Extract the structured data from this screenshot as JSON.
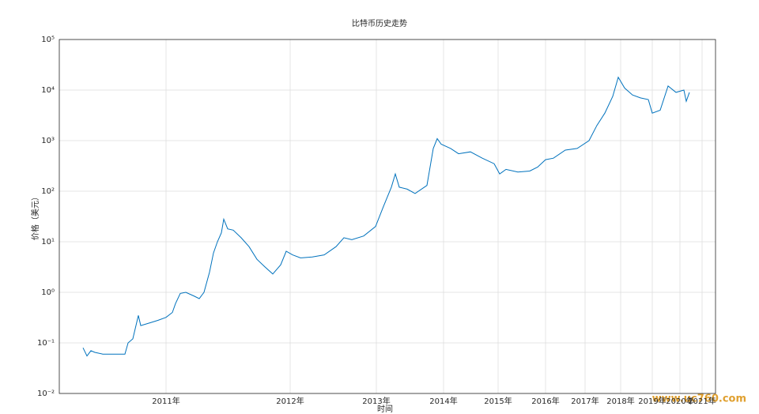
{
  "chart_data": {
    "type": "line",
    "title": "比特币历史走势",
    "xlabel": "时间",
    "ylabel": "价格（美元）",
    "watermark": "www.uc760.com",
    "log_y": true,
    "grid": true,
    "xlim": [
      0,
      830
    ],
    "ylim": [
      0.01,
      100000
    ],
    "xticks": [
      {
        "value": 135,
        "label": "2011年"
      },
      {
        "value": 292,
        "label": "2012年"
      },
      {
        "value": 401,
        "label": "2013年"
      },
      {
        "value": 486,
        "label": "2014年"
      },
      {
        "value": 555,
        "label": "2015年"
      },
      {
        "value": 615,
        "label": "2016年"
      },
      {
        "value": 665,
        "label": "2017年"
      },
      {
        "value": 710,
        "label": "2018年"
      },
      {
        "value": 750,
        "label": "2019年"
      },
      {
        "value": 785,
        "label": "2020年"
      },
      {
        "value": 813,
        "label": "2021年"
      }
    ],
    "yticks": [
      {
        "value": 0.01,
        "label": "10⁻²"
      },
      {
        "value": 0.1,
        "label": "10⁻¹"
      },
      {
        "value": 1,
        "label": "10⁰"
      },
      {
        "value": 10,
        "label": "10¹"
      },
      {
        "value": 100,
        "label": "10²"
      },
      {
        "value": 1000,
        "label": "10³"
      },
      {
        "value": 10000,
        "label": "10⁴"
      },
      {
        "value": 100000,
        "label": "10⁵"
      }
    ],
    "series": [
      {
        "color": "#0072bd",
        "x": [
          30,
          35,
          40,
          45,
          55,
          70,
          83,
          87,
          93,
          100,
          103,
          115,
          125,
          135,
          143,
          147,
          153,
          160,
          170,
          177,
          183,
          190,
          195,
          200,
          205,
          208,
          213,
          220,
          230,
          240,
          250,
          260,
          270,
          280,
          287,
          295,
          305,
          320,
          335,
          350,
          360,
          370,
          385,
          400,
          410,
          420,
          425,
          430,
          440,
          450,
          465,
          473,
          478,
          483,
          495,
          505,
          520,
          535,
          550,
          557,
          565,
          580,
          595,
          605,
          615,
          625,
          640,
          655,
          670,
          680,
          690,
          700,
          707,
          715,
          725,
          735,
          745,
          750,
          760,
          770,
          780,
          790,
          793,
          797
        ],
        "values": [
          0.08,
          0.055,
          0.07,
          0.065,
          0.06,
          0.06,
          0.06,
          0.1,
          0.12,
          0.35,
          0.22,
          0.25,
          0.28,
          0.32,
          0.4,
          0.6,
          0.95,
          1.0,
          0.85,
          0.75,
          1.0,
          2.5,
          6,
          10,
          15,
          28,
          18,
          17,
          12,
          8,
          4.5,
          3.2,
          2.3,
          3.5,
          6.5,
          5.5,
          4.8,
          5.0,
          5.5,
          8,
          12,
          11,
          13,
          20,
          50,
          120,
          220,
          120,
          110,
          90,
          130,
          700,
          1100,
          850,
          700,
          550,
          600,
          450,
          350,
          220,
          270,
          240,
          250,
          300,
          420,
          450,
          650,
          700,
          1000,
          2000,
          3500,
          7500,
          18000,
          11000,
          8000,
          7000,
          6500,
          3500,
          4000,
          12000,
          9000,
          10000,
          6000,
          9000
        ]
      }
    ]
  }
}
